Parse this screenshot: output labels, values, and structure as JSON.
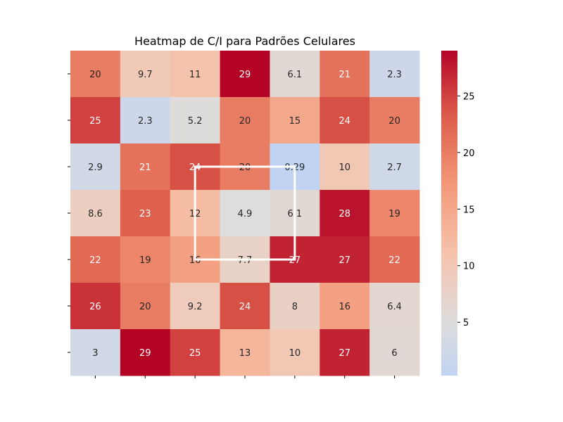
{
  "chart_data": {
    "type": "heatmap",
    "title": "Heatmap de C/I para Padrões Celulares",
    "xlabel": "",
    "ylabel": "",
    "x_tick_labels": [
      "",
      "",
      "",
      "",
      "",
      "",
      ""
    ],
    "y_tick_labels": [
      "",
      "",
      "",
      "",
      "",
      "",
      ""
    ],
    "values": [
      [
        20,
        9.7,
        11,
        29,
        6.1,
        21,
        2.3
      ],
      [
        25,
        2.3,
        5.2,
        20,
        15,
        24,
        20
      ],
      [
        2.9,
        21,
        24,
        20,
        0.29,
        10,
        2.7
      ],
      [
        8.6,
        23,
        12,
        4.9,
        6.1,
        28,
        19
      ],
      [
        22,
        19,
        16,
        7.7,
        27,
        27,
        22
      ],
      [
        26,
        20,
        9.2,
        24,
        8,
        16,
        6.4
      ],
      [
        3,
        29,
        25,
        13,
        10,
        27,
        6
      ]
    ],
    "colormap": "coolwarm",
    "vmin": 0.29,
    "vmax": 29,
    "colorbar": {
      "ticks": [
        5,
        10,
        15,
        20,
        25
      ]
    },
    "annotation": {
      "type": "white hexagon outline",
      "points_data": [
        [
          2,
          2
        ],
        [
          4,
          2
        ],
        [
          4,
          4
        ],
        [
          2,
          4
        ]
      ]
    }
  }
}
